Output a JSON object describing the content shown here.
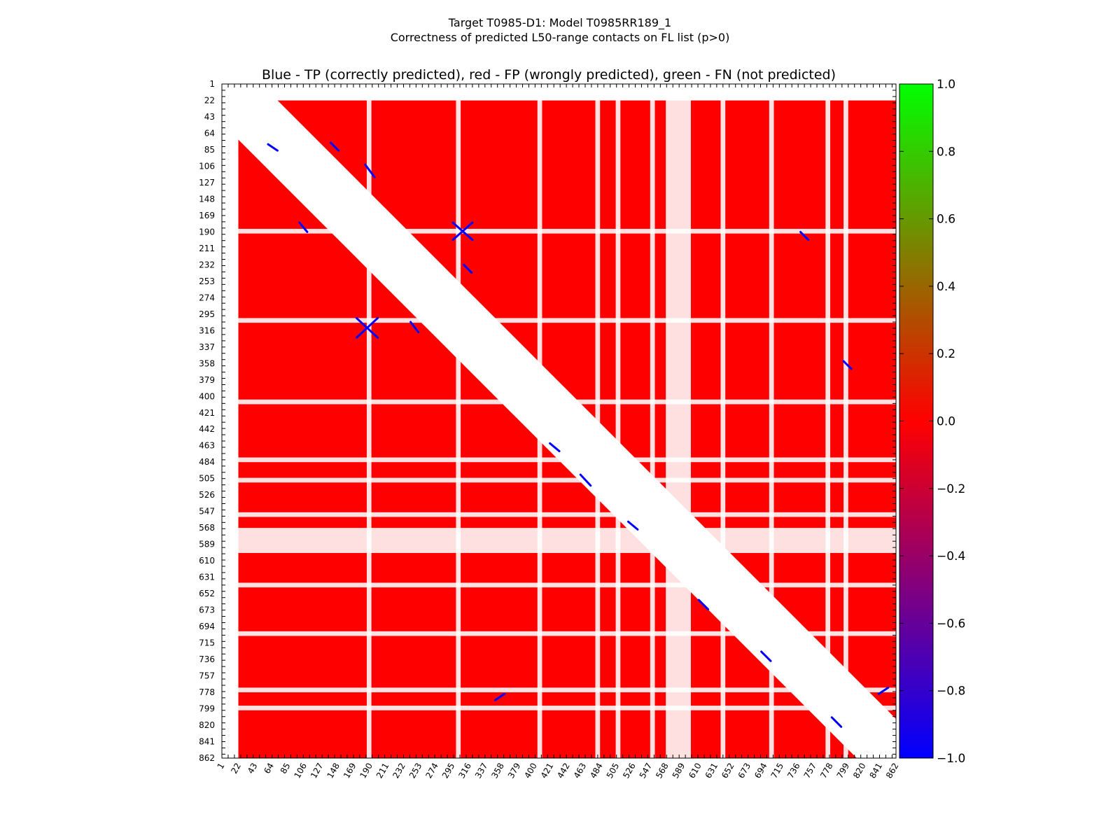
{
  "figure": {
    "title_line1": "Target T0985-D1: Model T0985RR189_1",
    "title_line2": "Correctness of predicted L50-range contacts on FL list (p>0)"
  },
  "chart_data": {
    "type": "heatmap",
    "title": "Blue - TP (correctly predicted), red - FP (wrongly predicted), green - FN (not predicted)",
    "xlabel": "",
    "ylabel": "",
    "x_range": [
      1,
      862
    ],
    "y_range": [
      1,
      862
    ],
    "y_inverted": true,
    "tick_labels": [
      "1",
      "22",
      "43",
      "64",
      "85",
      "106",
      "127",
      "148",
      "169",
      "190",
      "211",
      "232",
      "253",
      "274",
      "295",
      "316",
      "337",
      "358",
      "379",
      "400",
      "421",
      "442",
      "463",
      "484",
      "505",
      "526",
      "547",
      "568",
      "589",
      "610",
      "631",
      "652",
      "673",
      "694",
      "715",
      "736",
      "757",
      "778",
      "799",
      "820",
      "841",
      "862"
    ],
    "tick_values": [
      1,
      22,
      43,
      64,
      85,
      106,
      127,
      148,
      169,
      190,
      211,
      232,
      253,
      274,
      295,
      316,
      337,
      358,
      379,
      400,
      421,
      442,
      463,
      484,
      505,
      526,
      547,
      568,
      589,
      610,
      631,
      652,
      673,
      694,
      715,
      736,
      757,
      778,
      799,
      820,
      841,
      862
    ],
    "legend": {
      "show": false
    },
    "colorbar": {
      "min": -1.0,
      "max": 1.0,
      "tick_values": [
        1.0,
        0.8,
        0.6,
        0.4,
        0.2,
        0.0,
        -0.2,
        -0.4,
        -0.6,
        -0.8,
        -1.0
      ],
      "tick_labels": [
        "1.0",
        "0.8",
        "0.6",
        "0.4",
        "0.2",
        "0.0",
        "−0.2",
        "−0.4",
        "−0.6",
        "−0.8",
        "−1.0"
      ],
      "colors": {
        "low": "#0000ff",
        "mid": "#ff0000",
        "high": "#00ff00"
      }
    },
    "value_colors": {
      "TP": "#0000ff",
      "FP": "#ff0000",
      "FN": "#00ff00",
      "background": "#ffffff"
    },
    "fp_region": {
      "min_residue": 22,
      "max_residue": 862,
      "min_sequence_separation": 50
    },
    "white_stripes_residues": [
      [
        186,
        192
      ],
      [
        300,
        306
      ],
      [
        404,
        410
      ],
      [
        478,
        484
      ],
      [
        504,
        510
      ],
      [
        548,
        554
      ],
      [
        568,
        600
      ],
      [
        638,
        644
      ],
      [
        700,
        706
      ],
      [
        772,
        778
      ],
      [
        795,
        801
      ]
    ],
    "tp_contacts": [
      {
        "from": [
          173,
          300
        ],
        "to": [
          200,
          325
        ]
      },
      {
        "from": [
          200,
          300
        ],
        "to": [
          173,
          325
        ]
      },
      {
        "from": [
          296,
          178
        ],
        "to": [
          321,
          200
        ]
      },
      {
        "from": [
          321,
          178
        ],
        "to": [
          296,
          200
        ]
      },
      {
        "from": [
          60,
          78
        ],
        "to": [
          72,
          86
        ]
      },
      {
        "from": [
          100,
          178
        ],
        "to": [
          110,
          190
        ]
      },
      {
        "from": [
          140,
          76
        ],
        "to": [
          150,
          86
        ]
      },
      {
        "from": [
          184,
          104
        ],
        "to": [
          196,
          120
        ]
      },
      {
        "from": [
          242,
          305
        ],
        "to": [
          252,
          318
        ]
      },
      {
        "from": [
          310,
          232
        ],
        "to": [
          320,
          242
        ]
      },
      {
        "from": [
          350,
          788
        ],
        "to": [
          362,
          780
        ]
      },
      {
        "from": [
          420,
          460
        ],
        "to": [
          432,
          470
        ]
      },
      {
        "from": [
          459,
          500
        ],
        "to": [
          472,
          514
        ]
      },
      {
        "from": [
          520,
          560
        ],
        "to": [
          532,
          570
        ]
      },
      {
        "from": [
          610,
          660
        ],
        "to": [
          622,
          672
        ]
      },
      {
        "from": [
          690,
          726
        ],
        "to": [
          702,
          738
        ]
      },
      {
        "from": [
          780,
          810
        ],
        "to": [
          792,
          822
        ]
      },
      {
        "from": [
          795,
          355
        ],
        "to": [
          805,
          365
        ]
      },
      {
        "from": [
          740,
          190
        ],
        "to": [
          750,
          200
        ]
      },
      {
        "from": [
          840,
          780
        ],
        "to": [
          852,
          772
        ]
      }
    ]
  }
}
